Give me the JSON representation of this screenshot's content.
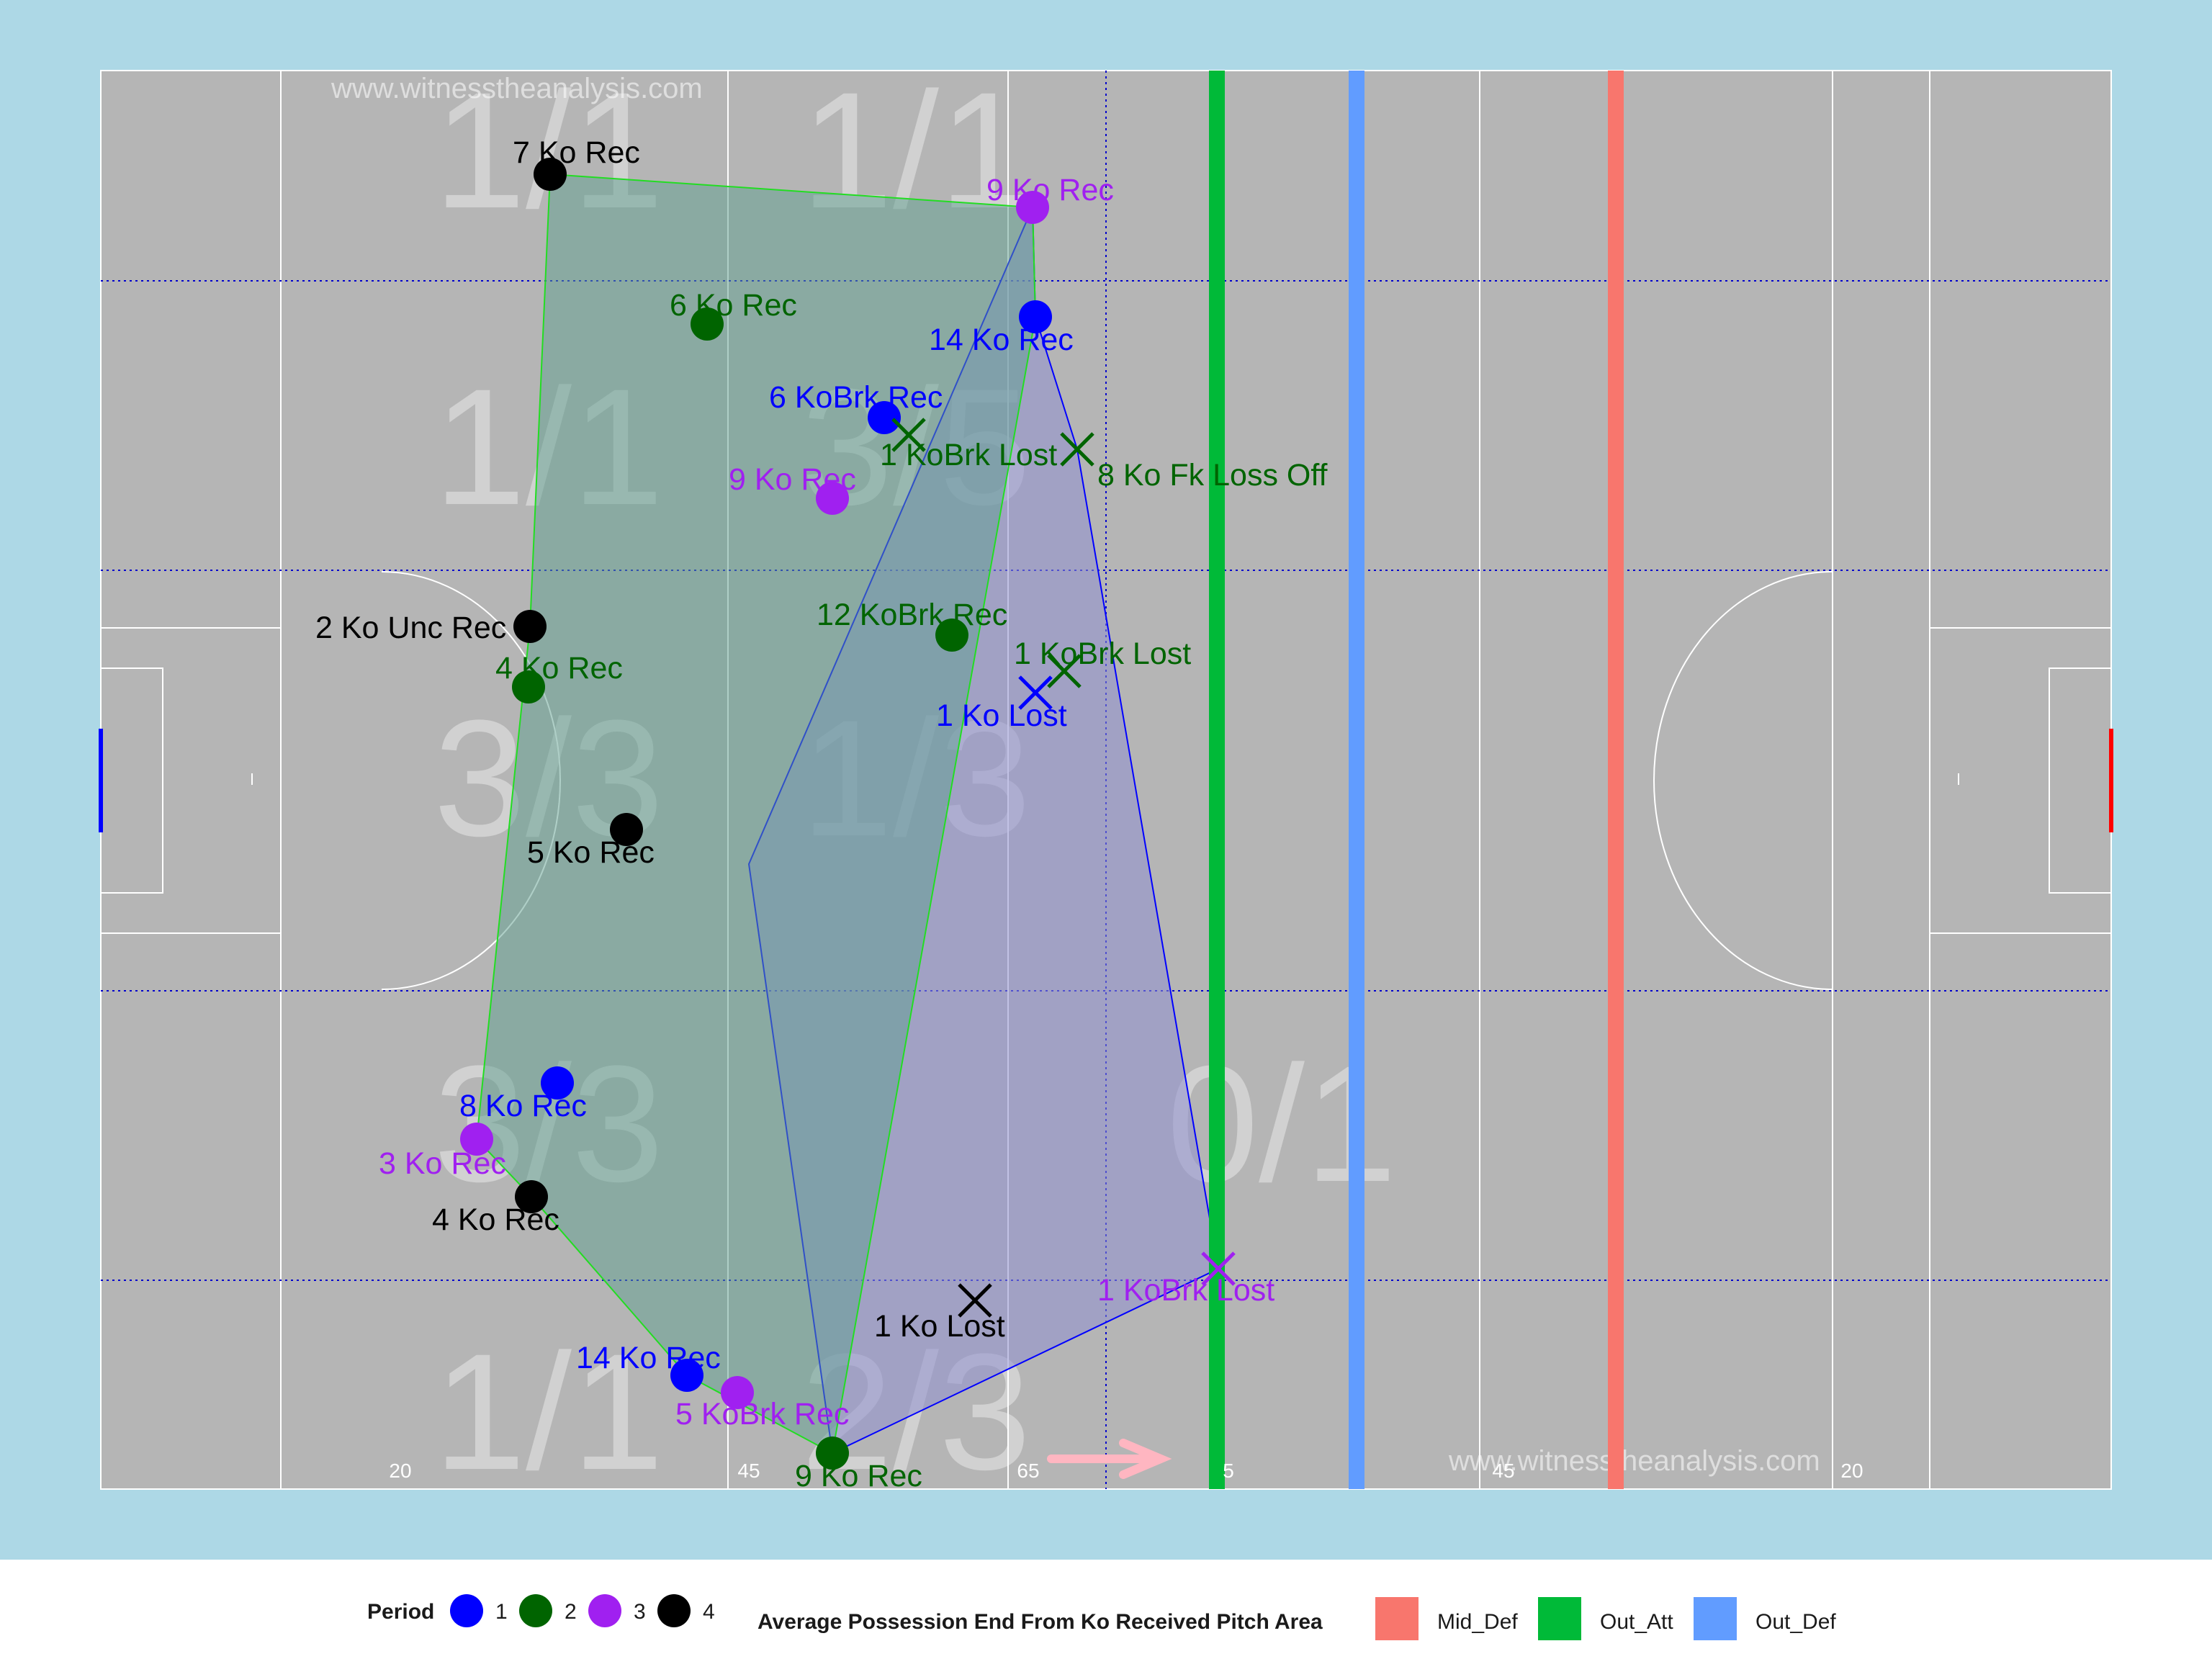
{
  "chart_data": {
    "type": "scatter",
    "watermark": "www.witnesstheanalysis.com",
    "colors": {
      "background": "#add8e6",
      "pitch": "#b5b5b5",
      "period": {
        "1": "#0000ff",
        "2": "#006400",
        "3": "#a020f0",
        "4": "#000000"
      },
      "areas": {
        "Mid_Def": "#f8766d",
        "Out_Att": "#00ba38",
        "Out_Def": "#619cff"
      },
      "hull_green_fill": "#5f9f8f",
      "hull_blue_fill": "#8f8fd0"
    },
    "pitch_markers": [
      "20",
      "45",
      "65",
      "5",
      "45",
      "20"
    ],
    "zone_ratios": [
      "1/1",
      "1/1",
      "1/1",
      "3/5",
      "3/3",
      "1/3",
      "3/3",
      "0/1",
      "1/1",
      "2/3"
    ],
    "area_lines": [
      "Out_Att",
      "Out_Def",
      "Mid_Def"
    ],
    "received": [
      {
        "label": "7 Ko Rec",
        "period": 4
      },
      {
        "label": "9 Ko Rec",
        "period": 3
      },
      {
        "label": "6 Ko Rec",
        "period": 2
      },
      {
        "label": "14 Ko Rec",
        "period": 1
      },
      {
        "label": "6 KoBrk Rec",
        "period": 1
      },
      {
        "label": "9 Ko Rec",
        "period": 3
      },
      {
        "label": "12 KoBrk Rec",
        "period": 2
      },
      {
        "label": "2 Ko Unc Rec",
        "period": 4
      },
      {
        "label": "4 Ko Rec",
        "period": 2
      },
      {
        "label": "5 Ko Rec",
        "period": 4
      },
      {
        "label": "8 Ko Rec",
        "period": 1
      },
      {
        "label": "3 Ko Rec",
        "period": 3
      },
      {
        "label": "4 Ko Rec",
        "period": 4
      },
      {
        "label": "14 Ko Rec",
        "period": 1
      },
      {
        "label": "5 KoBrk Rec",
        "period": 3
      },
      {
        "label": "9 Ko Rec",
        "period": 2
      }
    ],
    "lost": [
      {
        "label": "1 KoBrk Lost",
        "period": 2
      },
      {
        "label": "8 Ko Fk Loss Off",
        "period": 2
      },
      {
        "label": "1 KoBrk Lost",
        "period": 2
      },
      {
        "label": "1 Ko Lost",
        "period": 1
      },
      {
        "label": "1 KoBrk Lost",
        "period": 3
      },
      {
        "label": "1 Ko Lost",
        "period": 4
      }
    ],
    "legend": {
      "period_title": "Period",
      "periods": [
        "1",
        "2",
        "3",
        "4"
      ],
      "area_title": "Average Possession End From Ko Received Pitch Area",
      "areas": [
        "Mid_Def",
        "Out_Att",
        "Out_Def"
      ]
    }
  }
}
